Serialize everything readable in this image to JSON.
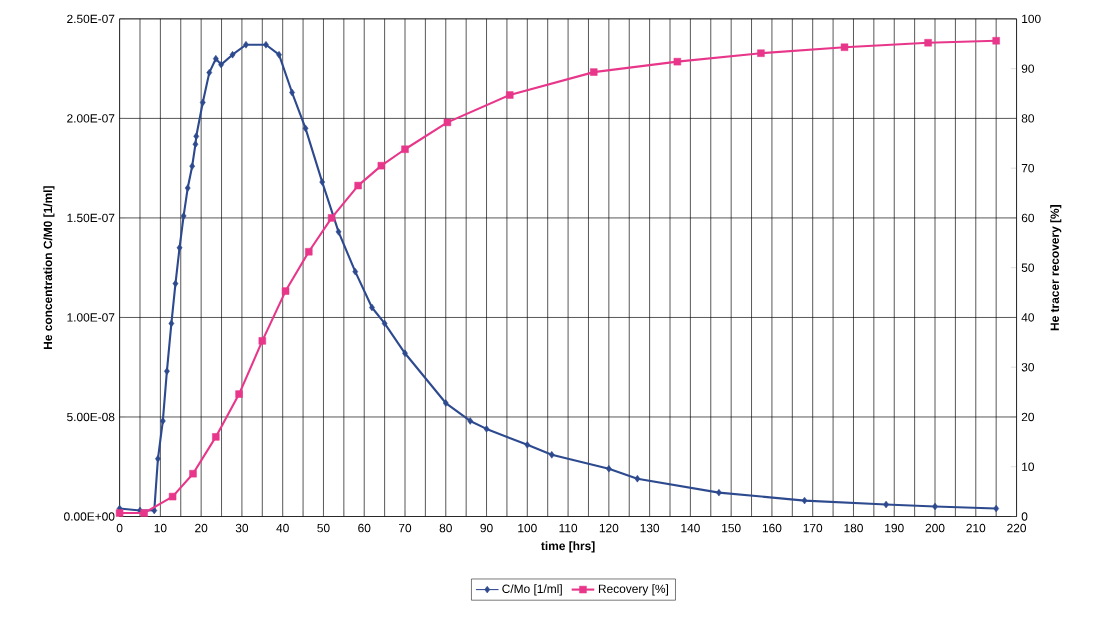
{
  "chart_data": {
    "type": "line",
    "xlabel": "time [hrs]",
    "ylabel": "He concentration C/M0 [1/ml]",
    "y2label": "He tracer recovery [%]",
    "xlim": [
      0,
      220
    ],
    "ylim": [
      0,
      2.5e-07
    ],
    "y2lim": [
      0,
      100
    ],
    "xticks": [
      0,
      {
        "value": 5,
        "label": null
      },
      10,
      {
        "value": 15,
        "label": null
      },
      20,
      {
        "value": 25,
        "label": null
      },
      30,
      {
        "value": 35,
        "label": null
      },
      40,
      {
        "value": 45,
        "label": null
      },
      50,
      {
        "value": 55,
        "label": null
      },
      60,
      {
        "value": 65,
        "label": null
      },
      70,
      {
        "value": 75,
        "label": null
      },
      80,
      {
        "value": 85,
        "label": null
      },
      90,
      {
        "value": 95,
        "label": null
      },
      100,
      {
        "value": 105,
        "label": null
      },
      110,
      {
        "value": 115,
        "label": null
      },
      120,
      {
        "value": 125,
        "label": null
      },
      130,
      {
        "value": 135,
        "label": null
      },
      140,
      {
        "value": 145,
        "label": null
      },
      150,
      {
        "value": 155,
        "label": null
      },
      160,
      {
        "value": 165,
        "label": null
      },
      170,
      {
        "value": 175,
        "label": null
      },
      180,
      {
        "value": 185,
        "label": null
      },
      190,
      {
        "value": 195,
        "label": null
      },
      200,
      {
        "value": 205,
        "label": null
      },
      210,
      {
        "value": 215,
        "label": null
      },
      220
    ],
    "yticks": [
      {
        "value": 0,
        "label": "0.00E+00"
      },
      {
        "value": 5e-08,
        "label": "5.00E-08"
      },
      {
        "value": 1e-07,
        "label": "1.00E-07"
      },
      {
        "value": 1.5e-07,
        "label": "1.50E-07"
      },
      {
        "value": 2e-07,
        "label": "2.00E-07"
      },
      {
        "value": 2.5e-07,
        "label": "2.50E-07"
      }
    ],
    "y2ticks": [
      0,
      10,
      20,
      30,
      40,
      50,
      60,
      70,
      80,
      90,
      100
    ],
    "grid": true,
    "legend": "bottom",
    "line_style": "solid",
    "series": [
      {
        "name": "C/Mo [1/ml]",
        "color": "#2e4a8f",
        "marker": "diamond",
        "x": [
          0,
          5,
          8.5,
          9.4,
          10.6,
          11.6,
          12.7,
          13.7,
          14.7,
          15.7,
          16.7,
          17.8,
          18.6,
          18.8,
          20.4,
          22,
          23.6,
          24.9,
          27.7,
          31,
          35.9,
          39.1,
          42.3,
          45.6,
          49.7,
          53.7,
          57.8,
          61.9,
          65,
          70,
          80,
          86,
          90,
          100,
          106,
          120,
          127,
          147,
          168,
          188,
          200,
          215
        ],
        "values": [
          4e-09,
          3e-09,
          3e-09,
          2.9e-08,
          4.8e-08,
          7.3e-08,
          9.7e-08,
          1.17e-07,
          1.35e-07,
          1.51e-07,
          1.65e-07,
          1.76e-07,
          1.87e-07,
          1.91e-07,
          2.08e-07,
          2.23e-07,
          2.3e-07,
          2.27e-07,
          2.32e-07,
          2.37e-07,
          2.37e-07,
          2.32e-07,
          2.13e-07,
          1.95e-07,
          1.68e-07,
          1.43e-07,
          1.23e-07,
          1.05e-07,
          9.7e-08,
          8.2e-08,
          5.7e-08,
          4.8e-08,
          4.4e-08,
          3.6e-08,
          3.1e-08,
          2.4e-08,
          1.9e-08,
          1.2e-08,
          8e-09,
          6e-09,
          5e-09,
          4e-09
        ]
      },
      {
        "name": "Recovery [%]",
        "color": "#e8378a",
        "marker": "square",
        "axis": "y2",
        "x": [
          0,
          6,
          13,
          18,
          23.6,
          29.3,
          35,
          40.7,
          46.4,
          52,
          58.5,
          64.2,
          70,
          80.4,
          95.7,
          116.3,
          136.8,
          157.3,
          177.8,
          198.3,
          215
        ],
        "values": [
          0.7,
          0.7,
          4,
          8.6,
          16,
          24.6,
          35.3,
          45.3,
          53.2,
          60,
          66.5,
          70.5,
          73.8,
          79.2,
          84.7,
          89.3,
          91.4,
          93.1,
          94.3,
          95.2,
          95.6
        ]
      }
    ]
  }
}
